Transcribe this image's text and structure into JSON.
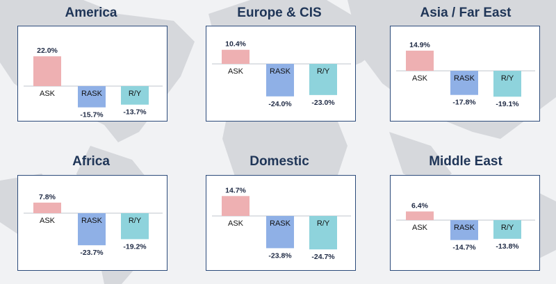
{
  "colors": {
    "ask": "#eeb0b2",
    "rask": "#8fb0e6",
    "ry": "#8ed3dc",
    "frame": "#2b4a7a",
    "title": "#1f3557",
    "map": "#d6d8dc"
  },
  "chart_data": [
    {
      "type": "bar",
      "title": "America",
      "categories": [
        "ASK",
        "RASK",
        "R/Y"
      ],
      "values": [
        22.0,
        -15.7,
        -13.7
      ],
      "labels": [
        "22.0%",
        "-15.7%",
        "-13.7%"
      ]
    },
    {
      "type": "bar",
      "title": "Europe & CIS",
      "categories": [
        "ASK",
        "RASK",
        "R/Y"
      ],
      "values": [
        10.4,
        -24.0,
        -23.0
      ],
      "labels": [
        "10.4%",
        "-24.0%",
        "-23.0%"
      ]
    },
    {
      "type": "bar",
      "title": "Asia / Far East",
      "categories": [
        "ASK",
        "RASK",
        "R/Y"
      ],
      "values": [
        14.9,
        -17.8,
        -19.1
      ],
      "labels": [
        "14.9%",
        "-17.8%",
        "-19.1%"
      ]
    },
    {
      "type": "bar",
      "title": "Africa",
      "categories": [
        "ASK",
        "RASK",
        "R/Y"
      ],
      "values": [
        7.8,
        -23.7,
        -19.2
      ],
      "labels": [
        "7.8%",
        "-23.7%",
        "-19.2%"
      ]
    },
    {
      "type": "bar",
      "title": "Domestic",
      "categories": [
        "ASK",
        "RASK",
        "R/Y"
      ],
      "values": [
        14.7,
        -23.8,
        -24.7
      ],
      "labels": [
        "14.7%",
        "-23.8%",
        "-24.7%"
      ]
    },
    {
      "type": "bar",
      "title": "Middle East",
      "categories": [
        "ASK",
        "RASK",
        "R/Y"
      ],
      "values": [
        6.4,
        -14.7,
        -13.8
      ],
      "labels": [
        "6.4%",
        "-14.7%",
        "-13.8%"
      ]
    }
  ]
}
